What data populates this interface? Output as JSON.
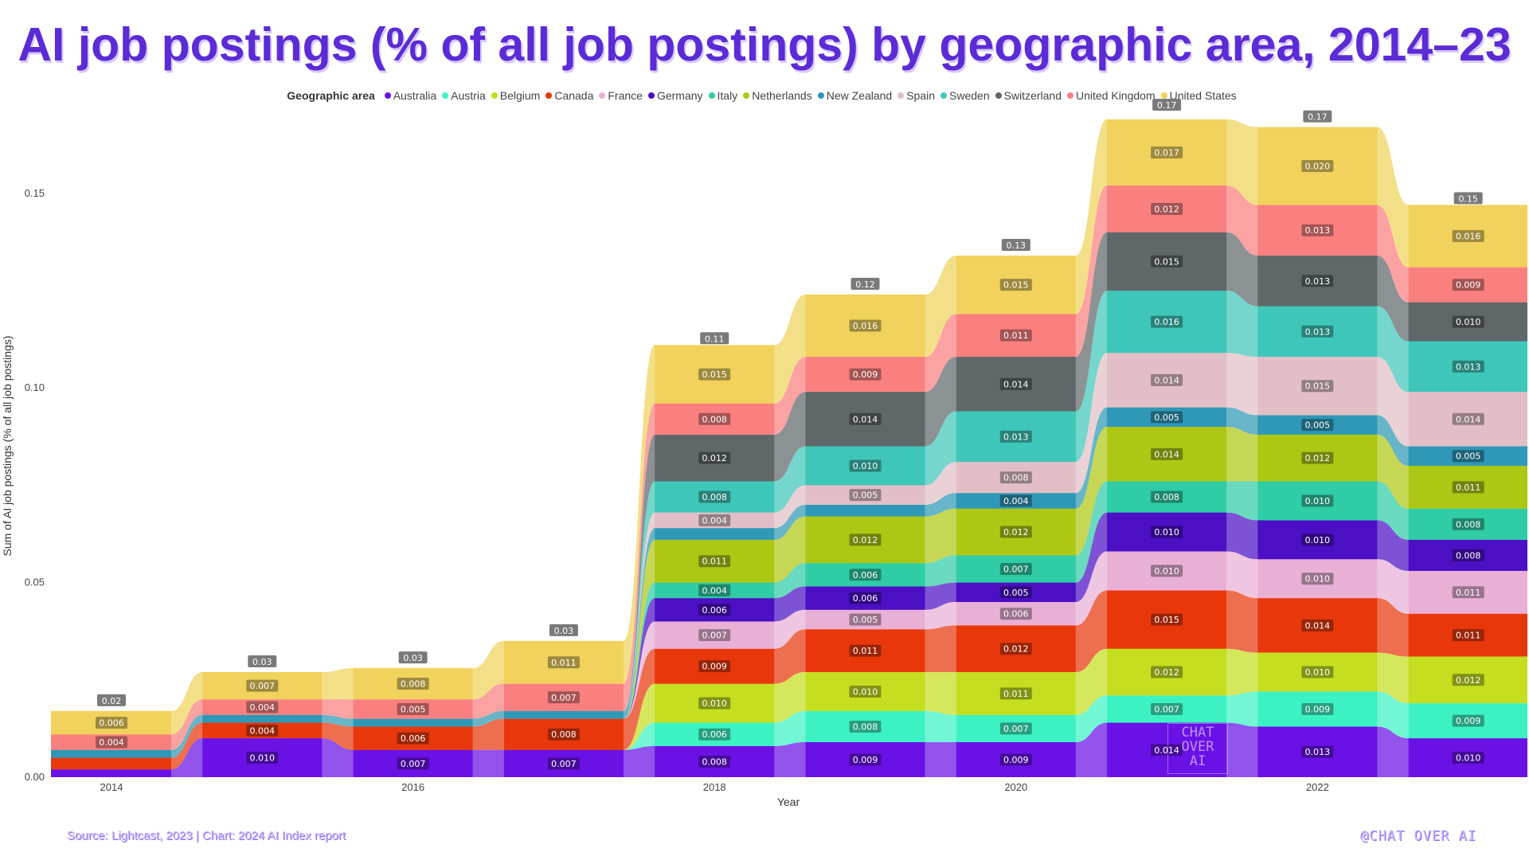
{
  "chart_data": {
    "type": "area",
    "title": "AI job postings (% of all job postings) by geographic area, 2014–23",
    "xlabel": "Year",
    "ylabel": "Sum of AI job postings (% of all job postings)",
    "ylim": [
      0,
      0.17
    ],
    "yticks": [
      0.0,
      0.05,
      0.1,
      0.15
    ],
    "ytick_labels": [
      "0.00",
      "0.05",
      "0.10",
      "0.15"
    ],
    "xticks": [
      2014,
      2016,
      2018,
      2020,
      2022
    ],
    "grid": false,
    "legend_title": "Geographic area",
    "legend_position": "top",
    "x": [
      2014,
      2015,
      2016,
      2017,
      2018,
      2019,
      2020,
      2021,
      2022,
      2023
    ],
    "series": [
      {
        "name": "Australia",
        "color": "#6A11E6",
        "values": [
          0.002,
          0.01,
          0.007,
          0.007,
          0.008,
          0.009,
          0.009,
          0.014,
          0.013,
          0.01
        ],
        "labels": [
          "",
          "0.010",
          "0.007",
          "0.007",
          "0.008",
          "0.009",
          "0.009",
          "0.014",
          "0.013",
          "0.010"
        ]
      },
      {
        "name": "Austria",
        "color": "#3CF2C3",
        "values": [
          0,
          0,
          0,
          0,
          0.006,
          0.008,
          0.007,
          0.007,
          0.009,
          0.009
        ],
        "labels": [
          "",
          "",
          "",
          "",
          "0.006",
          "0.008",
          "0.007",
          "0.007",
          "0.009",
          "0.009"
        ]
      },
      {
        "name": "Belgium",
        "color": "#C5DE1F",
        "values": [
          0,
          0,
          0,
          0,
          0.01,
          0.01,
          0.011,
          0.012,
          0.01,
          0.012
        ],
        "labels": [
          "",
          "",
          "",
          "",
          "0.010",
          "0.010",
          "0.011",
          "0.012",
          "0.010",
          "0.012"
        ]
      },
      {
        "name": "Canada",
        "color": "#E8380B",
        "values": [
          0.003,
          0.004,
          0.006,
          0.008,
          0.009,
          0.011,
          0.012,
          0.015,
          0.014,
          0.011
        ],
        "labels": [
          "",
          "0.004",
          "0.006",
          "0.008",
          "0.009",
          "0.011",
          "0.012",
          "0.015",
          "0.014",
          "0.011"
        ]
      },
      {
        "name": "France",
        "color": "#E9B0D6",
        "values": [
          0,
          0,
          0,
          0,
          0.007,
          0.005,
          0.006,
          0.01,
          0.01,
          0.011
        ],
        "labels": [
          "",
          "",
          "",
          "",
          "0.007",
          "0.005",
          "0.006",
          "0.010",
          "0.010",
          "0.011"
        ]
      },
      {
        "name": "Germany",
        "color": "#4B0FC4",
        "values": [
          0,
          0,
          0,
          0,
          0.006,
          0.006,
          0.005,
          0.01,
          0.01,
          0.008
        ],
        "labels": [
          "",
          "",
          "",
          "",
          "0.006",
          "0.006",
          "0.005",
          "0.010",
          "0.010",
          "0.008"
        ]
      },
      {
        "name": "Italy",
        "color": "#2FCCA6",
        "values": [
          0,
          0,
          0,
          0,
          0.004,
          0.006,
          0.007,
          0.008,
          0.01,
          0.008
        ],
        "labels": [
          "",
          "",
          "",
          "",
          "0.004",
          "0.006",
          "0.007",
          "0.008",
          "0.010",
          "0.008"
        ]
      },
      {
        "name": "Netherlands",
        "color": "#AEC714",
        "values": [
          0,
          0,
          0,
          0,
          0.011,
          0.012,
          0.012,
          0.014,
          0.012,
          0.011
        ],
        "labels": [
          "",
          "",
          "",
          "",
          "0.011",
          "0.012",
          "0.012",
          "0.014",
          "0.012",
          "0.011"
        ]
      },
      {
        "name": "New Zealand",
        "color": "#2E98B6",
        "values": [
          0.002,
          0.002,
          0.002,
          0.002,
          0.003,
          0.003,
          0.004,
          0.005,
          0.005,
          0.005
        ],
        "labels": [
          "",
          "",
          "",
          "",
          "",
          "",
          "0.004",
          "0.005",
          "0.005",
          "0.005"
        ]
      },
      {
        "name": "Spain",
        "color": "#E2BFC6",
        "values": [
          0,
          0,
          0,
          0,
          0.004,
          0.005,
          0.008,
          0.014,
          0.015,
          0.014
        ],
        "labels": [
          "",
          "",
          "",
          "",
          "0.004",
          "0.005",
          "0.008",
          "0.014",
          "0.015",
          "0.014"
        ]
      },
      {
        "name": "Sweden",
        "color": "#3EC6B8",
        "values": [
          0,
          0,
          0,
          0,
          0.008,
          0.01,
          0.013,
          0.016,
          0.013,
          0.013
        ],
        "labels": [
          "",
          "",
          "",
          "",
          "0.008",
          "0.010",
          "0.013",
          "0.016",
          "0.013",
          "0.013"
        ]
      },
      {
        "name": "Switzerland",
        "color": "#5F6769",
        "values": [
          0,
          0,
          0,
          0,
          0.012,
          0.014,
          0.014,
          0.015,
          0.013,
          0.01
        ],
        "labels": [
          "",
          "",
          "",
          "",
          "0.012",
          "0.014",
          "0.014",
          "0.015",
          "0.013",
          "0.010"
        ]
      },
      {
        "name": "United Kingdom",
        "color": "#FA8080",
        "values": [
          0.004,
          0.004,
          0.005,
          0.007,
          0.008,
          0.009,
          0.011,
          0.012,
          0.013,
          0.009
        ],
        "labels": [
          "0.004",
          "0.004",
          "0.005",
          "0.007",
          "0.008",
          "0.009",
          "0.011",
          "0.012",
          "0.013",
          "0.009"
        ]
      },
      {
        "name": "United States",
        "color": "#F0D25C",
        "values": [
          0.006,
          0.007,
          0.008,
          0.011,
          0.015,
          0.016,
          0.015,
          0.017,
          0.02,
          0.016
        ],
        "labels": [
          "0.006",
          "0.007",
          "0.008",
          "0.011",
          "0.015",
          "0.016",
          "0.015",
          "0.017",
          "0.020",
          "0.016"
        ]
      }
    ],
    "totals": [
      0.017,
      0.027,
      0.028,
      0.035,
      0.11,
      0.124,
      0.134,
      0.17,
      0.167,
      0.146
    ],
    "total_labels": [
      "0.02",
      "0.03",
      "0.03",
      "0.03",
      "0.11",
      "0.12",
      "0.13",
      "0.17",
      "0.17",
      "0.15"
    ]
  },
  "footer": {
    "source": "Source: Lightcast, 2023 | Chart: 2024 AI Index report",
    "handle": "@CHAT OVER AI"
  },
  "watermark": {
    "text": "CHAT OVER AI"
  }
}
